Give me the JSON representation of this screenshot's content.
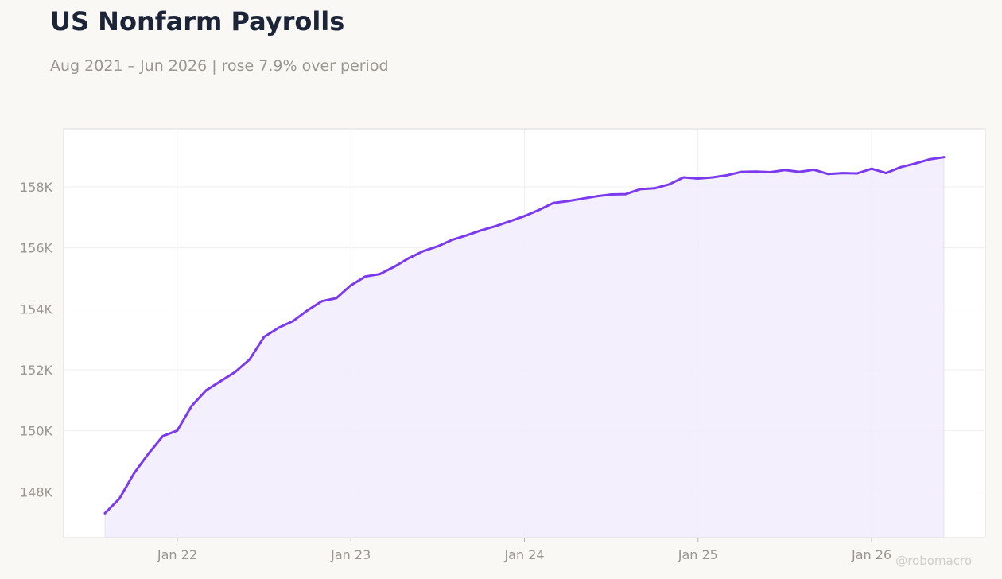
{
  "header": {
    "title": "US Nonfarm Payrolls",
    "subtitle": "Aug 2021 – Jun 2026 | rose 7.9% over period"
  },
  "watermark": "@robomacro",
  "colors": {
    "line": "#7c3aed",
    "area": "#f1ecfd",
    "grid": "#efefef",
    "frame": "#dedbd6"
  },
  "chart_data": {
    "type": "area",
    "title": "US Nonfarm Payrolls",
    "subtitle": "Aug 2021 – Jun 2026 | rose 7.9% over period",
    "xlabel": "",
    "ylabel": "",
    "grid": true,
    "legend": "none",
    "x_start": "2021-08",
    "x_end": "2026-06",
    "x_ticks": [
      "Jan 22",
      "Jan 23",
      "Jan 24",
      "Jan 25",
      "Jan 26"
    ],
    "y_ticks": [
      "148K",
      "150K",
      "152K",
      "154K",
      "156K",
      "158K"
    ],
    "ylim": [
      146500,
      159900
    ],
    "series": [
      {
        "values": [
          147300,
          147780,
          148600,
          149250,
          149830,
          150010,
          150820,
          151330,
          151630,
          151930,
          152340,
          153080,
          153380,
          153600,
          153950,
          154250,
          154350,
          154770,
          155060,
          155140,
          155380,
          155660,
          155890,
          156050,
          156260,
          156410,
          156570,
          156710,
          156870,
          157040,
          157240,
          157470,
          157530,
          157610,
          157690,
          157750,
          157760,
          157920,
          157950,
          158080,
          158310,
          158270,
          158310,
          158380,
          158490,
          158500,
          158480,
          158550,
          158490,
          158560,
          158420,
          158450,
          158440,
          158590,
          158450,
          158640,
          158760,
          158900,
          158970
        ]
      }
    ]
  }
}
